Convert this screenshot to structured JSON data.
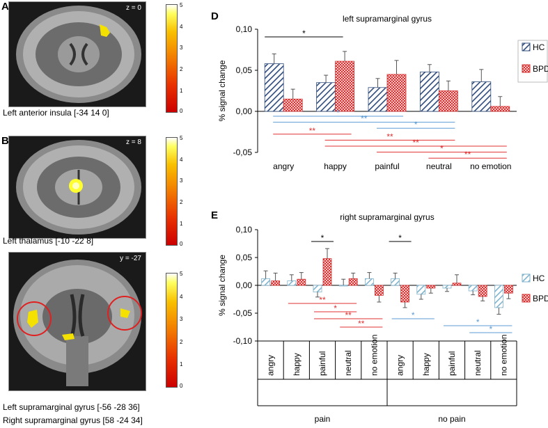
{
  "panels": {
    "A": {
      "label": "A",
      "coord": "z = 0",
      "caption": "Left anterior insula [-34 14 0]"
    },
    "B": {
      "label": "B",
      "coord": "z = 8",
      "caption": "Left thalamus [-10 -22 8]"
    },
    "C": {
      "coord": "y = -27",
      "caption1": "Left supramarginal gyrus [-56 -28 36]",
      "caption2": "Right supramarginal gyrus [58 -24 34]"
    }
  },
  "colorbar_ticks": [
    "5",
    "4",
    "3",
    "2",
    "1",
    "0"
  ],
  "colors": {
    "hc_dark": "#2e4a7a",
    "hc_light": "#7fb2cc",
    "bpd": "#d63030",
    "black": "#000000",
    "blue_sig": "#5b9bd5",
    "red_sig": "#e03030"
  },
  "chart_data": [
    {
      "panel": "D",
      "type": "bar",
      "title": "left supramarginal gyrus",
      "ylabel": "% signal change",
      "ylim": [
        -0.05,
        0.1
      ],
      "yticks": [
        "0,10",
        "0,05",
        "0,00",
        "-0,05"
      ],
      "categories": [
        "angry",
        "happy",
        "painful",
        "neutral",
        "no emotion"
      ],
      "series": [
        {
          "name": "HC",
          "values": [
            0.058,
            0.035,
            0.029,
            0.048,
            0.036
          ],
          "errors": [
            0.012,
            0.009,
            0.011,
            0.009,
            0.015
          ]
        },
        {
          "name": "BPD",
          "values": [
            0.015,
            0.061,
            0.045,
            0.025,
            0.006
          ],
          "errors": [
            0.012,
            0.012,
            0.017,
            0.012,
            0.012
          ]
        }
      ],
      "significance": [
        {
          "from": 0,
          "to": 1,
          "label": "*",
          "color": "black"
        },
        {
          "from": 0,
          "to": 2,
          "label": "*",
          "color": "blue"
        },
        {
          "from": 0,
          "to": 3,
          "label": "**",
          "color": "blue"
        },
        {
          "from": 2,
          "to": 3,
          "label": "*",
          "color": "blue"
        },
        {
          "from": 0,
          "to": 1,
          "label": "**",
          "color": "red"
        },
        {
          "from": 1,
          "to": 3,
          "label": "**",
          "color": "red"
        },
        {
          "from": 1,
          "to": 4,
          "label": "**",
          "color": "red"
        },
        {
          "from": 2,
          "to": 4,
          "label": "*",
          "color": "red"
        },
        {
          "from": 3,
          "to": 4,
          "label": "**",
          "color": "red"
        }
      ]
    },
    {
      "panel": "E",
      "type": "bar",
      "title": "right supramarginal gyrus",
      "ylabel": "% signal change",
      "ylim": [
        -0.1,
        0.1
      ],
      "yticks": [
        "0,10",
        "0,05",
        "0,00",
        "-0,05",
        "-0,10"
      ],
      "categories": [
        "angry",
        "happy",
        "painful",
        "neutral",
        "no emotion",
        "angry",
        "happy",
        "painful",
        "neutral",
        "no emotion"
      ],
      "groups": [
        {
          "label": "pain",
          "from": 0,
          "to": 4
        },
        {
          "label": "no pain",
          "from": 5,
          "to": 9
        }
      ],
      "series": [
        {
          "name": "HC",
          "values": [
            0.012,
            0.008,
            -0.012,
            0.0,
            0.012,
            0.012,
            -0.016,
            -0.005,
            -0.01,
            -0.04
          ],
          "errors": [
            0.014,
            0.011,
            0.009,
            0.011,
            0.011,
            0.01,
            0.009,
            0.006,
            0.007,
            0.012
          ]
        },
        {
          "name": "BPD",
          "values": [
            0.008,
            0.011,
            0.048,
            0.012,
            -0.018,
            -0.03,
            -0.005,
            0.004,
            -0.02,
            -0.014
          ],
          "errors": [
            0.014,
            0.012,
            0.018,
            0.01,
            0.012,
            0.01,
            0.009,
            0.015,
            0.008,
            0.01
          ]
        }
      ],
      "significance": [
        {
          "from": 2,
          "to": 2,
          "label": "*",
          "color": "black"
        },
        {
          "from": 5,
          "to": 5,
          "label": "*",
          "color": "black"
        },
        {
          "from": 1,
          "to": 3,
          "label": "**",
          "color": "red"
        },
        {
          "from": 2,
          "to": 3,
          "label": "*",
          "color": "red"
        },
        {
          "from": 2,
          "to": 4,
          "label": "**",
          "color": "red"
        },
        {
          "from": 3,
          "to": 4,
          "label": "**",
          "color": "red"
        },
        {
          "from": 5,
          "to": 6,
          "label": "*",
          "color": "blue"
        },
        {
          "from": 7,
          "to": 9,
          "label": "*",
          "color": "blue"
        },
        {
          "from": 8,
          "to": 9,
          "label": "*",
          "color": "blue"
        }
      ]
    }
  ]
}
